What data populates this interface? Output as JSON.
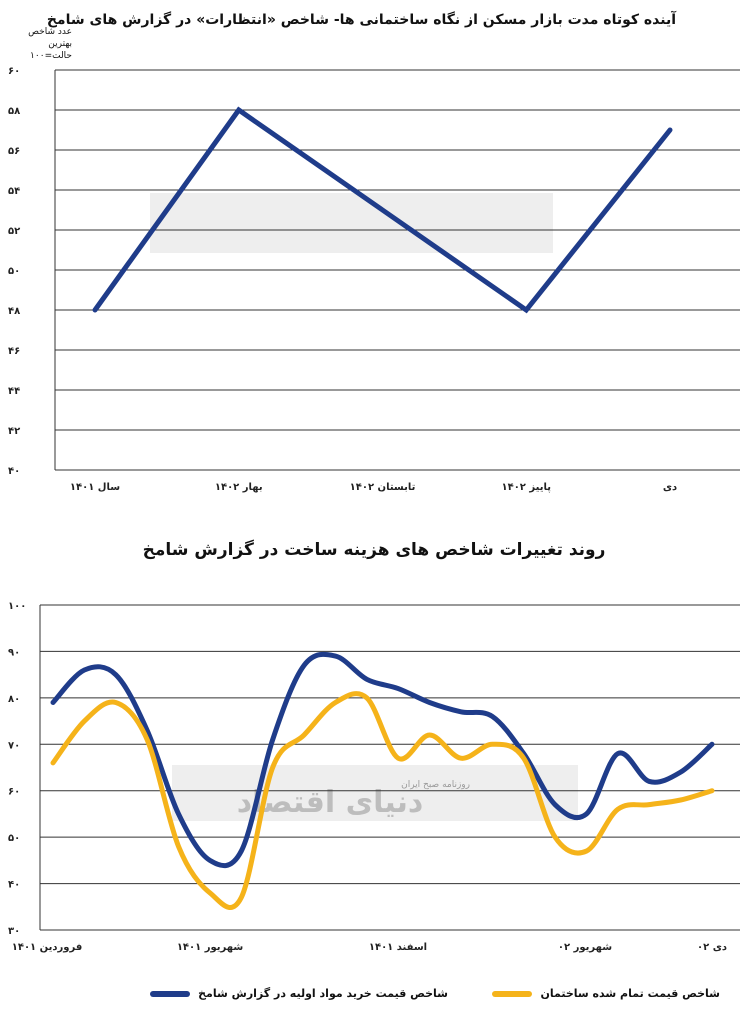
{
  "chart_data": [
    {
      "type": "line",
      "title": "آینده کوتاه مدت بازار مسکن از نگاه ساختمانی ها- شاخص «انتظارات» در گزارش های شامخ",
      "ylabel": "عدد شاخص بهترین حالت=۱۰۰",
      "ylabel_line1": "عدد شاخص",
      "ylabel_line2": "بهترین حالت=۱۰۰",
      "categories": [
        "سال ۱۴۰۱",
        "بهار ۱۴۰۲",
        "تابستان ۱۴۰۲",
        "پاییز ۱۴۰۲",
        "دی"
      ],
      "series": [
        {
          "values": [
            48,
            58,
            53,
            48,
            57
          ],
          "color": "#1f3c8a"
        }
      ],
      "ylim": [
        40,
        60
      ],
      "yticks": [
        "۴۰",
        "۴۲",
        "۴۴",
        "۴۶",
        "۴۸",
        "۵۰",
        "۵۲",
        "۵۴",
        "۵۶",
        "۵۸",
        "۶۰"
      ],
      "grid": true
    },
    {
      "type": "line",
      "title": "روند تغییرات شاخص های هزینه ساخت در گزارش شامخ",
      "categories": [
        "فروردین ۱۴۰۱",
        "شهریور ۱۴۰۱",
        "اسفند ۱۴۰۱",
        "شهریور ۰۲",
        "دی ۰۲"
      ],
      "x": [
        0,
        1,
        2,
        3,
        4,
        5,
        6,
        7,
        8,
        9,
        10,
        11,
        12,
        13,
        14,
        15,
        16,
        17,
        18,
        19,
        20,
        21
      ],
      "series": [
        {
          "name": "شاخص قیمت خرید مواد اولیه در گزارش شامخ",
          "color": "#1f3c8a",
          "values": [
            79,
            86,
            85,
            73,
            55,
            45,
            47,
            71,
            87,
            89,
            84,
            82,
            79,
            77,
            76,
            68,
            57,
            55,
            68,
            62,
            64,
            70
          ]
        },
        {
          "name": "شاخص قیمت تمام شده ساختمان",
          "color": "#f5b31a",
          "values": [
            66,
            75,
            79,
            71,
            48,
            38,
            37,
            65,
            72,
            79,
            80,
            67,
            72,
            67,
            70,
            67,
            50,
            47,
            56,
            57,
            58,
            60
          ]
        }
      ],
      "ylim": [
        30,
        100
      ],
      "yticks": [
        "۳۰",
        "۴۰",
        "۵۰",
        "۶۰",
        "۷۰",
        "۸۰",
        "۹۰",
        "۱۰۰"
      ],
      "grid": true,
      "legend": "bottom"
    }
  ],
  "watermark": {
    "logo_text": "دنیای اقتصاد",
    "subtitle": "روزنامه صبح ایران"
  }
}
